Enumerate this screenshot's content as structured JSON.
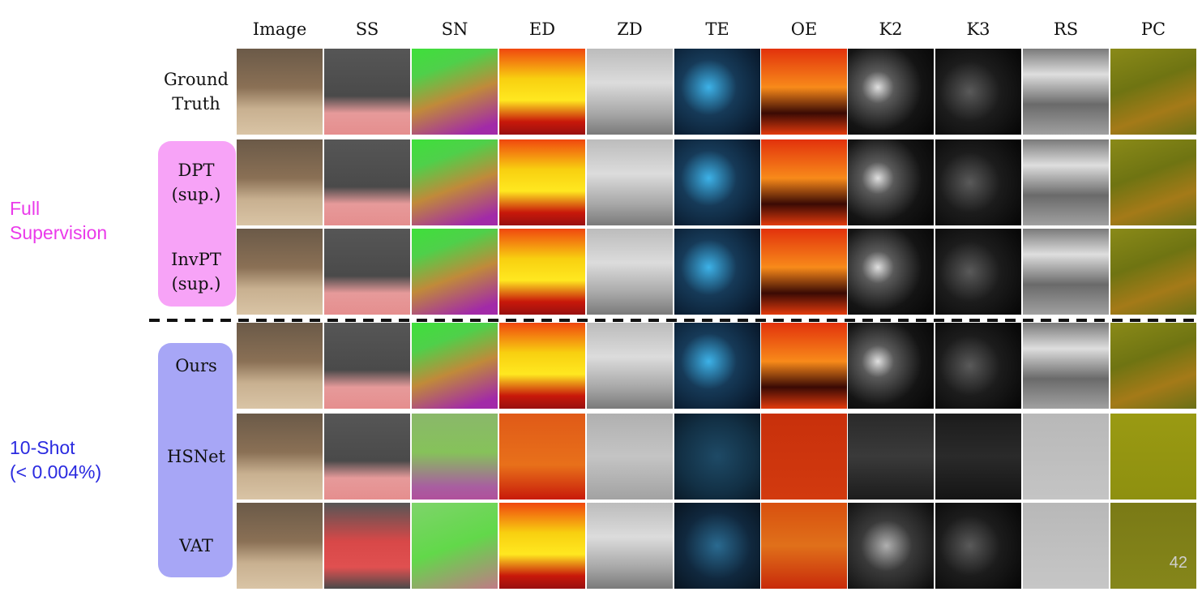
{
  "groups": [
    {
      "label": "Full\nSupervision",
      "color": "#ea3aea"
    },
    {
      "label": "10-Shot\n(< 0.004%)",
      "color": "#2a2ae0"
    }
  ],
  "columns": [
    "Image",
    "SS",
    "SN",
    "ED",
    "ZD",
    "TE",
    "OE",
    "K2",
    "K3",
    "RS",
    "PC"
  ],
  "rows": [
    {
      "label": "Ground\nTruth",
      "pill": null
    },
    {
      "label": "DPT\n(sup.)",
      "pill": "#f7a3f7"
    },
    {
      "label": "InvPT\n(sup.)",
      "pill": "#f7a3f7"
    },
    {
      "label": "Ours",
      "pill": "#a7a6f6"
    },
    {
      "label": "HSNet",
      "pill": "#a7a6f6"
    },
    {
      "label": "VAT",
      "pill": "#a7a6f6"
    }
  ],
  "page_number": "42",
  "cell_gradients": {
    "Image": "linear-gradient(180deg,#6b5a48 0%,#8a7055 45%,#c8b090 70%,#d9c4a5 100%)",
    "SS": "linear-gradient(180deg,#565656 0%,#4a4a4a 55%,#e69a9a 75%,#e58e8e 100%)",
    "SN": "linear-gradient(160deg,#3ee03a 0%,#4fd04a 25%,#c08a3a 55%,#a22aa8 90%)",
    "ED": "linear-gradient(180deg,#f0470f 0%,#f8d010 35%,#ffe820 60%,#c8180a 85%,#981010 100%)",
    "ZD": "linear-gradient(180deg,#bcbcbc 0%,#dcdcdc 40%,#a8a8a8 75%,#7a7a7a 100%)",
    "TE": "radial-gradient(circle at 40% 45%,#3db2e8 0%,#163a58 40%,#051020 100%)",
    "OE": "linear-gradient(180deg,#e2320c 0%,#f88a1a 45%,#3a0a04 75%,#e23a0c 100%)",
    "K2": "radial-gradient(circle at 35% 45%,#e0e0e0 0%,#5a5a5a 22%,#141414 60%,#050505 100%)",
    "K3": "radial-gradient(circle at 40% 50%,#5a5a5a 0%,#1c1c1c 45%,#050505 100%)",
    "RS": "linear-gradient(180deg,#7a7a7a 0%,#dedede 30%,#6a6a6a 65%,#a0a0a0 100%)",
    "PC": "linear-gradient(160deg,#8a8a18 0%,#6f7412 40%,#a47a18 70%,#6a7016 100%)"
  },
  "row_overrides": {
    "4": {
      "SN": "linear-gradient(180deg,#8ab86a 0%,#86c25a 45%,#a85ea0 85%,#b0509c 100%)",
      "ED": "linear-gradient(180deg,#e05a18 0%,#e8701a 60%,#c81a0a 100%)",
      "ZD": "linear-gradient(180deg,#b0b0b0 0%,#c4c4c4 50%,#a2a2a2 100%)",
      "TE": "radial-gradient(circle at 50% 50%,#1e4a66 0%,#123045 60%,#0a1a28 100%)",
      "OE": "linear-gradient(180deg,#c8300c 0%,#d23a0e 100%)",
      "K2": "linear-gradient(180deg,#2a2a2a 0%,#3a3a3a 50%,#1c1c1c 100%)",
      "K3": "linear-gradient(180deg,#1c1c1c 0%,#2a2a2a 50%,#141414 100%)",
      "RS": "linear-gradient(180deg,#b8b8b8 0%,#c4c4c4 100%)",
      "PC": "linear-gradient(180deg,#9a9a12 0%,#8e9010 100%)"
    },
    "5": {
      "SS": "linear-gradient(180deg,#565656 0%,#d84848 45%,#e05050 75%,#4a4a4a 100%)",
      "SN": "linear-gradient(160deg,#7ed46a 0%,#62d84a 50%,#c07a86 100%)",
      "TE": "radial-gradient(circle at 50% 50%,#2a6a90 0%,#10283e 55%,#081420 100%)",
      "OE": "linear-gradient(180deg,#d8500f 0%,#e0701a 50%,#c82a0a 100%)",
      "K2": "radial-gradient(circle at 45% 50%,#b0b0b0 0%,#3a3a3a 40%,#0a0a0a 100%)",
      "RS": "linear-gradient(180deg,#b8b8b8 0%,#c6c6c6 100%)",
      "PC": "linear-gradient(180deg,#7a7a16 0%,#85861a 100%)"
    }
  }
}
